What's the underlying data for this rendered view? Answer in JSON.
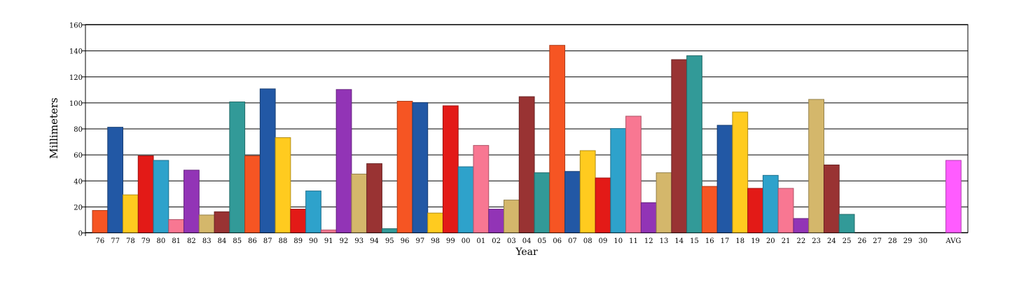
{
  "chart_data": {
    "type": "bar",
    "title": "",
    "xlabel": "Year",
    "ylabel": "Millimeters",
    "ylim": [
      0,
      160
    ],
    "yticks": [
      0,
      20,
      40,
      60,
      80,
      100,
      120,
      140,
      160
    ],
    "grid": true,
    "categories": [
      "76",
      "77",
      "78",
      "79",
      "80",
      "81",
      "82",
      "83",
      "84",
      "85",
      "86",
      "87",
      "88",
      "89",
      "90",
      "91",
      "92",
      "93",
      "94",
      "95",
      "96",
      "97",
      "98",
      "99",
      "00",
      "01",
      "02",
      "03",
      "04",
      "05",
      "06",
      "07",
      "08",
      "09",
      "10",
      "11",
      "12",
      "13",
      "14",
      "15",
      "16",
      "17",
      "18",
      "19",
      "20",
      "21",
      "22",
      "23",
      "24",
      "25",
      "26",
      "27",
      "28",
      "29",
      "30"
    ],
    "values": [
      17,
      81,
      29,
      59,
      55.5,
      10,
      48,
      13.5,
      16,
      100.5,
      59,
      110.5,
      73,
      18,
      32,
      2,
      110,
      45,
      53,
      3,
      101,
      100,
      15,
      97.5,
      50.6,
      67,
      18,
      25,
      104.5,
      46,
      144,
      47,
      63,
      42,
      80,
      89.5,
      23,
      46,
      133,
      136,
      35.5,
      82.5,
      92.7,
      34,
      44,
      34,
      10.8,
      102.4,
      52,
      14,
      0,
      0,
      0,
      0,
      0
    ],
    "average": {
      "label": "AVG",
      "value": 55.5,
      "color": "#FF5CFF"
    },
    "colors": [
      "#F65523",
      "#2258A5",
      "#FFCB1F",
      "#E31A17",
      "#2EA2CB",
      "#F87792",
      "#9234B6",
      "#D4B76B",
      "#993333",
      "#329A98"
    ]
  }
}
